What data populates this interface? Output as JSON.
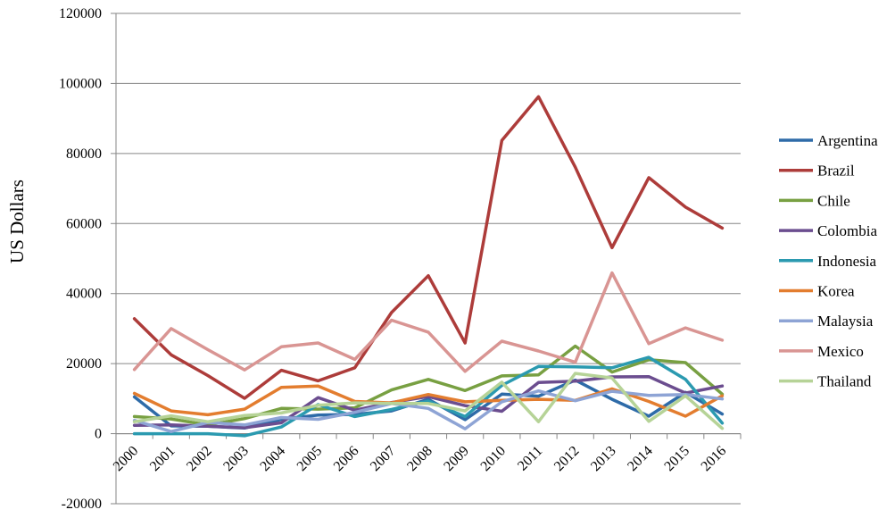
{
  "chart_data": {
    "type": "line",
    "title": "",
    "xlabel": "",
    "ylabel": "US Dollars",
    "ylim": [
      -20000,
      120000
    ],
    "yticks": [
      -20000,
      0,
      20000,
      40000,
      60000,
      80000,
      100000,
      120000
    ],
    "ytick_labels": [
      "-20000",
      "0",
      "20000",
      "40000",
      "60000",
      "80000",
      "100000",
      "120000"
    ],
    "grid": "horizontal",
    "legend_position": "right",
    "categories": [
      "2000",
      "2001",
      "2002",
      "2003",
      "2004",
      "2005",
      "2006",
      "2007",
      "2008",
      "2009",
      "2010",
      "2011",
      "2012",
      "2013",
      "2014",
      "2015",
      "2016"
    ],
    "series": [
      {
        "name": "Argentina",
        "color": "#2e6ba8",
        "values": [
          10500,
          2200,
          2100,
          1600,
          4100,
          5300,
          5500,
          6500,
          9800,
          4000,
          11300,
          10700,
          15300,
          9800,
          5000,
          11800,
          5600
        ]
      },
      {
        "name": "Brazil",
        "color": "#ad3c3a",
        "values": [
          32800,
          22500,
          16600,
          10100,
          18100,
          15100,
          18800,
          34600,
          45100,
          25900,
          83700,
          96200,
          76100,
          53100,
          73100,
          64700,
          58700
        ]
      },
      {
        "name": "Chile",
        "color": "#78a042",
        "values": [
          4900,
          4200,
          2500,
          4300,
          7200,
          7000,
          7400,
          12500,
          15500,
          12300,
          16500,
          16800,
          25000,
          17600,
          21100,
          20300,
          11300
        ]
      },
      {
        "name": "Colombia",
        "color": "#6b4d8f",
        "values": [
          2400,
          2500,
          2100,
          1700,
          3100,
          10300,
          6700,
          8900,
          10600,
          8000,
          6400,
          14600,
          15000,
          16200,
          16300,
          11600,
          13600
        ]
      },
      {
        "name": "Indonesia",
        "color": "#2b9ab0",
        "values": [
          0,
          0,
          0,
          -600,
          1900,
          8300,
          4900,
          6900,
          9300,
          4900,
          13800,
          19200,
          19100,
          18800,
          21800,
          15500,
          3000
        ]
      },
      {
        "name": "Korea",
        "color": "#e37d2f",
        "values": [
          11500,
          6500,
          5400,
          7000,
          13200,
          13600,
          9200,
          8800,
          11200,
          9100,
          9500,
          9800,
          9500,
          12800,
          9200,
          5000,
          10800
        ]
      },
      {
        "name": "Malaysia",
        "color": "#8ea4d5",
        "values": [
          3800,
          600,
          3200,
          2500,
          4600,
          4100,
          6100,
          8600,
          7200,
          1400,
          9100,
          12200,
          9400,
          12100,
          10900,
          11200,
          9900
        ]
      },
      {
        "name": "Mexico",
        "color": "#d99593",
        "values": [
          18300,
          30000,
          24000,
          18200,
          24800,
          25900,
          21200,
          32400,
          29000,
          17800,
          26400,
          23600,
          20400,
          45900,
          25700,
          30200,
          26700
        ]
      },
      {
        "name": "Thailand",
        "color": "#b6d397",
        "values": [
          3400,
          5100,
          3400,
          5200,
          5900,
          8100,
          8800,
          8600,
          8600,
          6500,
          14700,
          3400,
          17200,
          15900,
          3500,
          10800,
          1500
        ]
      }
    ]
  }
}
